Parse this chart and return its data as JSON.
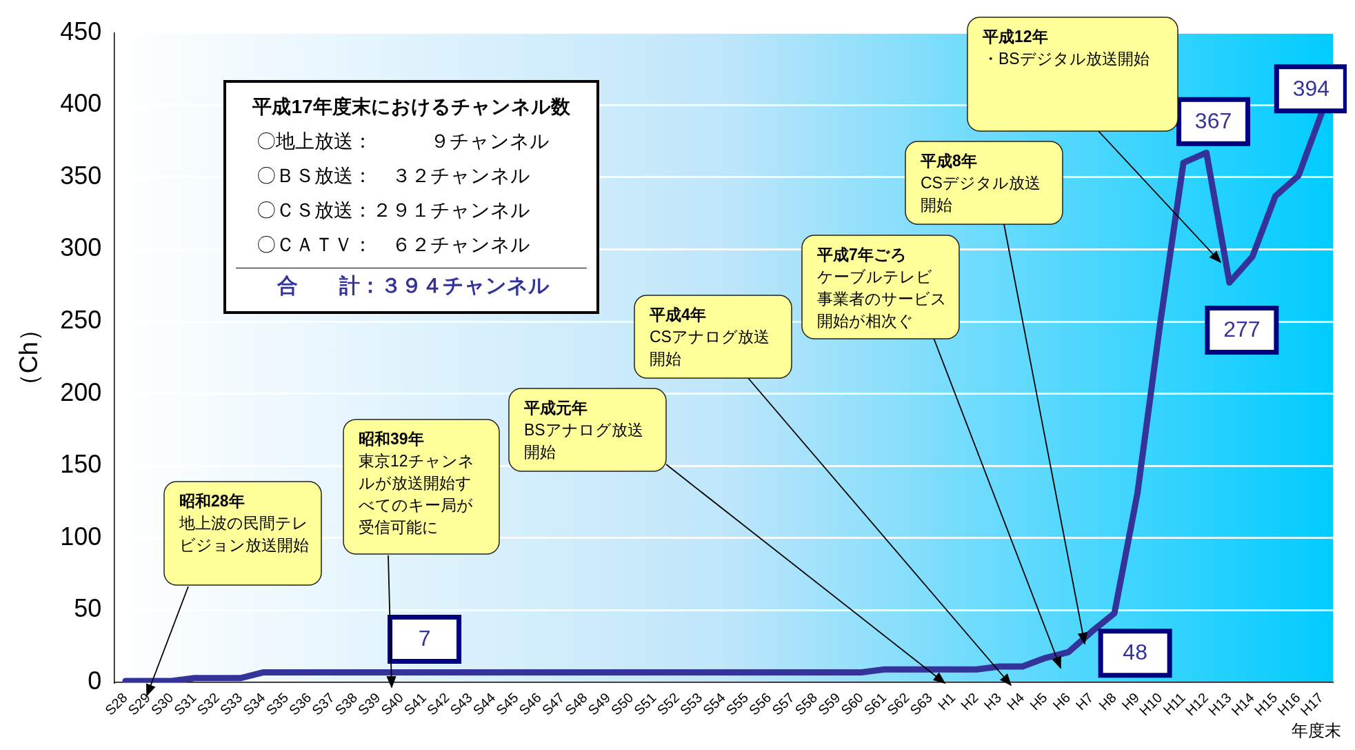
{
  "chart_data": {
    "type": "line",
    "categories": [
      "S28",
      "S29",
      "S30",
      "S31",
      "S32",
      "S33",
      "S34",
      "S35",
      "S36",
      "S37",
      "S38",
      "S39",
      "S40",
      "S41",
      "S42",
      "S43",
      "S44",
      "S45",
      "S46",
      "S47",
      "S48",
      "S49",
      "S50",
      "S51",
      "S52",
      "S53",
      "S54",
      "S55",
      "S56",
      "S57",
      "S58",
      "S59",
      "S60",
      "S61",
      "S62",
      "S63",
      "H1",
      "H2",
      "H3",
      "H4",
      "H5",
      "H6",
      "H7",
      "H8",
      "H9",
      "H10",
      "H11",
      "H12",
      "H13",
      "H14",
      "H15",
      "H16",
      "H17"
    ],
    "series": [
      {
        "color": "#333399",
        "values": [
          1,
          1,
          1,
          3,
          3,
          3,
          7,
          7,
          7,
          7,
          7,
          7,
          7,
          7,
          7,
          7,
          7,
          7,
          7,
          7,
          7,
          7,
          7,
          7,
          7,
          7,
          7,
          7,
          7,
          7,
          7,
          7,
          7,
          9,
          9,
          9,
          9,
          9,
          11,
          11,
          17,
          21,
          35,
          48,
          131,
          250,
          360,
          367,
          277,
          295,
          337,
          351,
          394
        ],
        "value_labels": [
          null,
          null,
          null,
          null,
          null,
          null,
          null,
          null,
          null,
          null,
          null,
          null,
          null,
          "7",
          null,
          null,
          null,
          null,
          null,
          null,
          null,
          null,
          null,
          null,
          null,
          null,
          null,
          null,
          null,
          null,
          null,
          null,
          null,
          null,
          null,
          null,
          null,
          null,
          null,
          null,
          null,
          null,
          null,
          "48",
          null,
          null,
          null,
          "367",
          "277",
          null,
          null,
          null,
          "394"
        ]
      }
    ],
    "ylabel": "（Ch）",
    "xlabel": "年度末",
    "ylim": [
      0,
      450
    ],
    "yticks": [
      0,
      50,
      100,
      150,
      200,
      250,
      300,
      350,
      400,
      450
    ],
    "grid": "y",
    "legend": false,
    "marker": "none",
    "line_style": "solid",
    "annotations": [
      "平成17年度末におけるチャンネル数",
      "〇地上放送：　　　９チャンネル",
      "〇ＢＳ放送：　３２チャンネル",
      "〇ＣＳ放送：２９１チャンネル",
      "〇ＣＡＴＶ：　６２チャンネル",
      "合　　計：３９４チャンネル",
      "昭和28年",
      "地上波の民間テレビジョン放送開始",
      "昭和39年",
      "東京12チャンネルが放送開始すべてのキー局が受信可能に",
      "平成元年",
      "BSアナログ放送開始",
      "平成4年",
      "CSアナログ放送開始",
      "平成7年ごろ",
      "ケーブルテレビ事業者のサービス開始が相次ぐ",
      "平成8年",
      "CSデジタル放送開始",
      "平成12年",
      "・BSデジタル放送開始"
    ]
  }
}
